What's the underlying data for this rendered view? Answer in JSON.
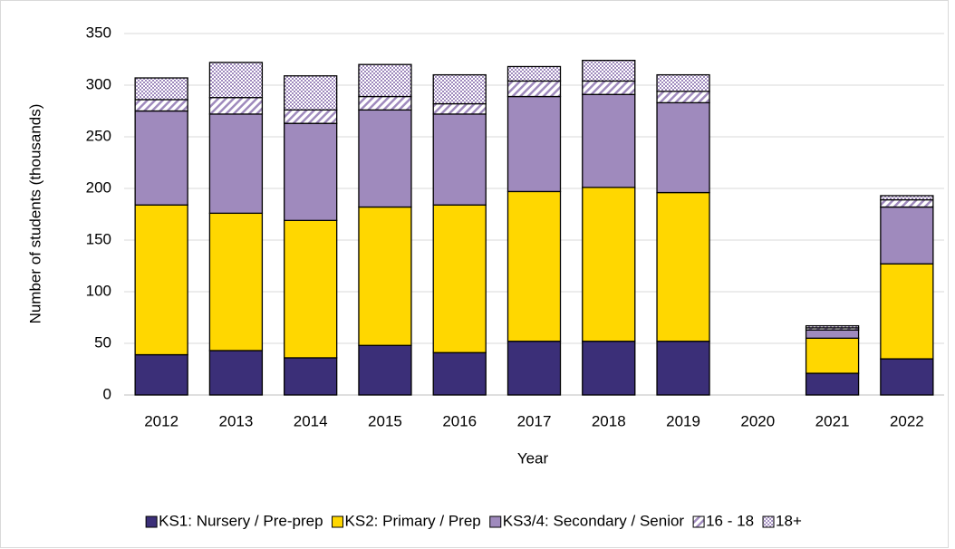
{
  "chart_data": {
    "type": "stacked_bar",
    "x_label": "Year",
    "y_label": "Number of students (thousands)",
    "categories": [
      "2012",
      "2013",
      "2014",
      "2015",
      "2016",
      "2017",
      "2018",
      "2019",
      "2020",
      "2021",
      "2022"
    ],
    "series": [
      {
        "name": "KS1: Nursery / Pre-prep",
        "color": "#3b2f78",
        "values": [
          39,
          43,
          36,
          48,
          41,
          52,
          52,
          52,
          null,
          21,
          35
        ]
      },
      {
        "name": "KS2: Primary / Prep",
        "color": "#ffd700",
        "values": [
          145,
          133,
          133,
          134,
          143,
          145,
          149,
          144,
          null,
          34,
          92
        ]
      },
      {
        "name": "KS3/4: Secondary / Senior",
        "color": "#9f8abd",
        "values": [
          91,
          96,
          94,
          94,
          88,
          92,
          90,
          87,
          null,
          8,
          55
        ]
      },
      {
        "name": "16 - 18",
        "color": "#9f8abd",
        "pattern": "hatch",
        "values": [
          11,
          16,
          13,
          13,
          10,
          15,
          13,
          11,
          null,
          2,
          7
        ]
      },
      {
        "name": "18+",
        "color": "#9f8abd",
        "pattern": "dots",
        "values": [
          21,
          34,
          33,
          31,
          28,
          14,
          20,
          16,
          null,
          2,
          4
        ]
      }
    ],
    "ylim": [
      0,
      350
    ],
    "yticks": [
      0,
      50,
      100,
      150,
      200,
      250,
      300,
      350
    ],
    "grid": true,
    "legend": "bottom"
  }
}
